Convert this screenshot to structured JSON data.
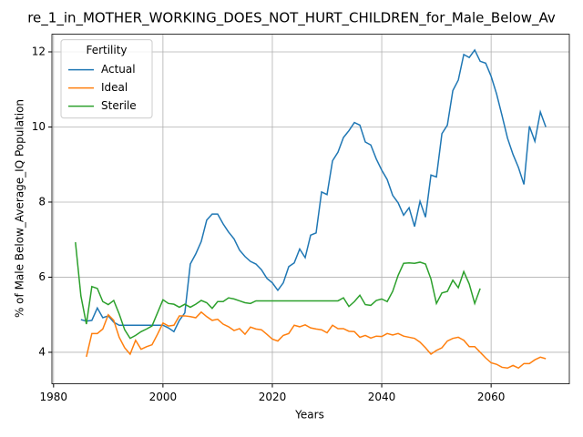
{
  "chart_data": {
    "type": "line",
    "title": "re_1_in_MOTHER_WORKING_DOES_NOT_HURT_CHILDREN_for_Male_Below_Av",
    "x_label": "Years",
    "y_label": "% of Male Below_Average_IQ Population",
    "legend_title": "Fertility",
    "legend": "upper left",
    "grid": true,
    "xlim": [
      1979.7,
      2074.3
    ],
    "ylim": [
      3.16,
      12.47
    ],
    "xticks": [
      1980,
      2000,
      2020,
      2040,
      2060
    ],
    "yticks": [
      4,
      6,
      8,
      10,
      12
    ],
    "x": [
      1984,
      1985,
      1986,
      1987,
      1988,
      1989,
      1990,
      1991,
      1992,
      1993,
      1994,
      1995,
      1996,
      1997,
      1998,
      1999,
      2000,
      2001,
      2002,
      2003,
      2004,
      2005,
      2006,
      2007,
      2008,
      2009,
      2010,
      2011,
      2012,
      2013,
      2014,
      2015,
      2016,
      2017,
      2018,
      2019,
      2020,
      2021,
      2022,
      2023,
      2024,
      2025,
      2026,
      2027,
      2028,
      2029,
      2030,
      2031,
      2032,
      2033,
      2034,
      2035,
      2036,
      2037,
      2038,
      2039,
      2040,
      2041,
      2042,
      2043,
      2044,
      2045,
      2046,
      2047,
      2048,
      2049,
      2050,
      2051,
      2052,
      2053,
      2054,
      2055,
      2056,
      2057,
      2058,
      2059,
      2060,
      2061,
      2062,
      2063,
      2064,
      2065,
      2066,
      2067,
      2068,
      2069,
      2070
    ],
    "series": [
      {
        "name": "Actual",
        "color": "#1f77b4",
        "values": [
          null,
          4.87,
          4.83,
          4.85,
          5.18,
          4.92,
          4.97,
          4.8,
          4.72,
          4.72,
          4.72,
          4.72,
          4.72,
          4.72,
          4.72,
          4.72,
          4.72,
          4.65,
          4.55,
          4.85,
          5.05,
          6.35,
          6.62,
          6.95,
          7.52,
          7.68,
          7.68,
          7.42,
          7.2,
          7.02,
          6.72,
          6.55,
          6.42,
          6.35,
          6.2,
          5.97,
          5.85,
          5.65,
          5.85,
          6.28,
          6.38,
          6.75,
          6.52,
          7.12,
          7.18,
          8.27,
          8.2,
          9.1,
          9.33,
          9.72,
          9.9,
          10.12,
          10.05,
          9.6,
          9.52,
          9.15,
          8.85,
          8.6,
          8.18,
          7.98,
          7.65,
          7.85,
          7.35,
          8.02,
          7.6,
          8.72,
          8.67,
          9.82,
          10.05,
          10.97,
          11.25,
          11.93,
          11.85,
          12.05,
          11.75,
          11.7,
          11.35,
          10.88,
          10.3,
          9.7,
          9.27,
          8.92,
          8.47,
          10.02,
          9.62,
          10.4,
          10.0
        ]
      },
      {
        "name": "Ideal",
        "color": "#ff7f0e",
        "values": [
          null,
          null,
          3.88,
          4.5,
          4.5,
          4.62,
          5.0,
          4.85,
          4.4,
          4.12,
          3.95,
          4.32,
          4.08,
          4.15,
          4.2,
          4.48,
          4.78,
          4.7,
          4.72,
          4.97,
          4.97,
          4.95,
          4.92,
          5.07,
          4.95,
          4.85,
          4.88,
          4.75,
          4.68,
          4.58,
          4.63,
          4.48,
          4.67,
          4.62,
          4.6,
          4.48,
          4.35,
          4.3,
          4.45,
          4.5,
          4.72,
          4.68,
          4.73,
          4.65,
          4.62,
          4.6,
          4.52,
          4.72,
          4.63,
          4.63,
          4.56,
          4.55,
          4.4,
          4.45,
          4.38,
          4.43,
          4.42,
          4.5,
          4.46,
          4.5,
          4.43,
          4.4,
          4.37,
          4.27,
          4.12,
          3.95,
          4.05,
          4.12,
          4.3,
          4.37,
          4.4,
          4.32,
          4.15,
          4.15,
          4.0,
          3.85,
          3.72,
          3.68,
          3.6,
          3.58,
          3.65,
          3.58,
          3.7,
          3.7,
          3.8,
          3.87,
          3.83
        ]
      },
      {
        "name": "Sterile",
        "color": "#2ca02c",
        "values": [
          6.93,
          5.5,
          4.75,
          5.75,
          5.7,
          5.35,
          5.27,
          5.38,
          5.02,
          4.6,
          4.37,
          4.45,
          4.55,
          4.62,
          4.7,
          5.05,
          5.4,
          5.3,
          5.28,
          5.2,
          5.28,
          5.2,
          5.28,
          5.38,
          5.32,
          5.17,
          5.35,
          5.35,
          5.45,
          5.42,
          5.37,
          5.32,
          5.3,
          5.37,
          5.37,
          5.37,
          5.37,
          5.37,
          5.37,
          5.37,
          5.37,
          5.37,
          5.37,
          5.37,
          5.37,
          5.37,
          5.37,
          5.37,
          5.37,
          5.45,
          5.22,
          5.35,
          5.52,
          5.27,
          5.25,
          5.38,
          5.42,
          5.35,
          5.62,
          6.05,
          6.37,
          6.38,
          6.37,
          6.4,
          6.35,
          5.95,
          5.3,
          5.58,
          5.62,
          5.92,
          5.72,
          6.15,
          5.82,
          5.3,
          5.7,
          null,
          null,
          null,
          null,
          null,
          null,
          null,
          null,
          null,
          null,
          null,
          null
        ]
      }
    ]
  }
}
